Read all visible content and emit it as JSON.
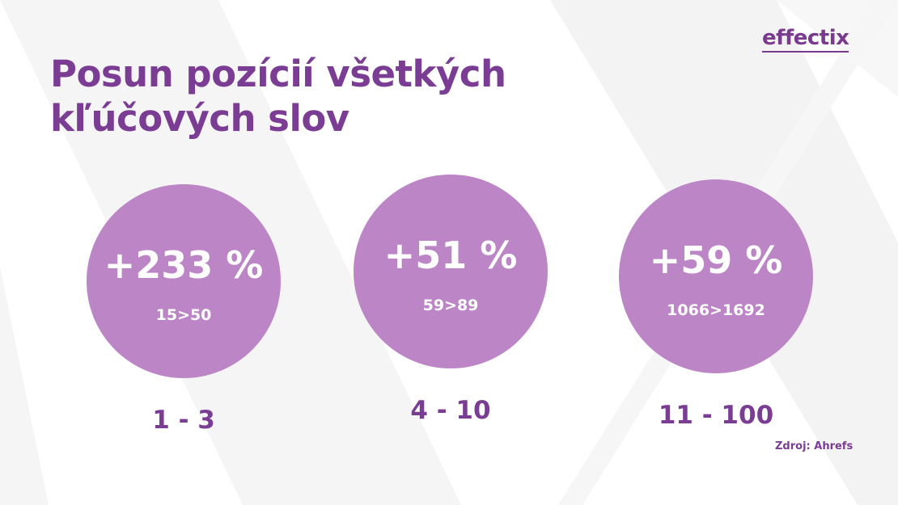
{
  "logo": {
    "text": "effectix"
  },
  "title": {
    "line1": "Posun pozícií všetkých",
    "line2": "kľúčových slov"
  },
  "stats": [
    {
      "percent": "+233 %",
      "change": "15>50",
      "range": "1 - 3"
    },
    {
      "percent": "+51 %",
      "change": "59>89",
      "range": "4 - 10"
    },
    {
      "percent": "+59 %",
      "change": "1066>1692",
      "range": "11 - 100"
    }
  ],
  "source": "Zdroj: Ahrefs",
  "colors": {
    "primary": "#7b3d93",
    "circle": "#bc86c6",
    "background": "#ffffff",
    "watermark": "#f4f4f4"
  }
}
